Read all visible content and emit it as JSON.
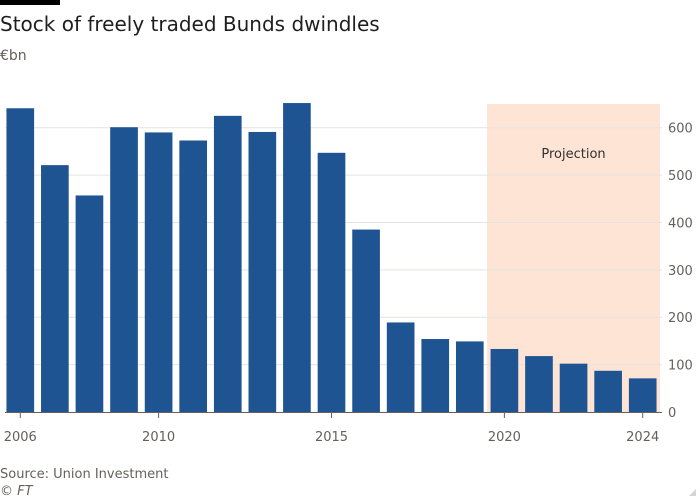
{
  "chart_data": {
    "type": "bar",
    "title": "Stock of freely traded Bunds dwindles",
    "subtitle": "€bn",
    "ylabel": "€bn",
    "xlabel": "",
    "categories": [
      2006,
      2007,
      2008,
      2009,
      2010,
      2011,
      2012,
      2013,
      2014,
      2015,
      2016,
      2017,
      2018,
      2019,
      2020,
      2021,
      2022,
      2023,
      2024
    ],
    "values": [
      641,
      521,
      457,
      601,
      590,
      573,
      625,
      591,
      652,
      547,
      385,
      189,
      154,
      149,
      133,
      118,
      102,
      87,
      71
    ],
    "ylim": [
      0,
      650
    ],
    "yticks": [
      0,
      100,
      200,
      300,
      400,
      500,
      600
    ],
    "xtick_labels": [
      "2006",
      "2010",
      "2015",
      "2020",
      "2024"
    ],
    "y_axis_position": "right",
    "grid": true,
    "bar_color": "#1f5493",
    "projection": {
      "label": "Projection",
      "start": 2020,
      "end": 2024,
      "color": "#fde4d4"
    }
  },
  "source": "Source: Union Investment",
  "copyright": "© FT"
}
